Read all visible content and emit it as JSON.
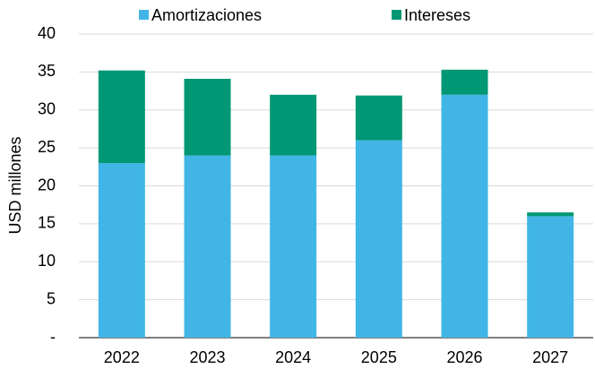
{
  "chart_data": {
    "type": "stacked_bar",
    "y_label": "USD millones",
    "categories": [
      "2022",
      "2023",
      "2024",
      "2025",
      "2026",
      "2027"
    ],
    "series": [
      {
        "name": "Amortizaciones",
        "color": "#41b6e6",
        "values": [
          23,
          24,
          24,
          26,
          32,
          16
        ]
      },
      {
        "name": "Intereses",
        "color": "#009774",
        "values": [
          12.2,
          10.1,
          8,
          5.9,
          3.3,
          0.5
        ]
      }
    ],
    "ylim": [
      0,
      40
    ],
    "yticks": [
      {
        "value": 0,
        "label": "-"
      },
      5,
      10,
      15,
      20,
      25,
      30,
      35,
      40
    ],
    "grid": true,
    "legend": "top"
  }
}
